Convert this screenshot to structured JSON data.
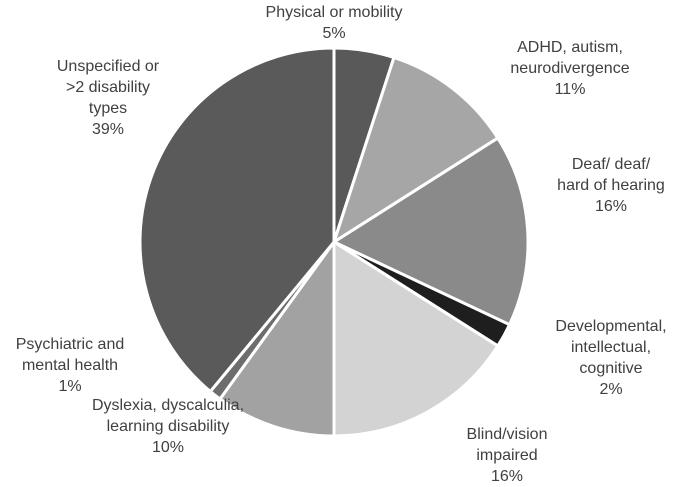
{
  "chart_data": {
    "type": "pie",
    "title": "",
    "slices": [
      {
        "name": "Physical or mobility",
        "lines": [
          "Physical or mobility"
        ],
        "value": 5,
        "label": "5%",
        "color": "#595959"
      },
      {
        "name": "ADHD, autism, neurodivergence",
        "lines": [
          "ADHD, autism,",
          "neurodivergence"
        ],
        "value": 11,
        "label": "11%",
        "color": "#a6a6a6"
      },
      {
        "name": "Deaf/ deaf/ hard of hearing",
        "lines": [
          "Deaf/ deaf/",
          "hard of hearing"
        ],
        "value": 16,
        "label": "16%",
        "color": "#8a8a8a"
      },
      {
        "name": "Developmental, intellectual, cognitive",
        "lines": [
          "Developmental,",
          "intellectual,",
          "cognitive"
        ],
        "value": 2,
        "label": "2%",
        "color": "#1e1e1e"
      },
      {
        "name": "Blind/vision impaired",
        "lines": [
          "Blind/vision",
          "impaired"
        ],
        "value": 16,
        "label": "16%",
        "color": "#d3d3d3"
      },
      {
        "name": "Dyslexia, dyscalculia, learning disability",
        "lines": [
          "Dyslexia, dyscalculia,",
          "learning disability"
        ],
        "value": 10,
        "label": "10%",
        "color": "#a2a2a2"
      },
      {
        "name": "Psychiatric and mental health",
        "lines": [
          "Psychiatric and",
          "mental health"
        ],
        "value": 1,
        "label": "1%",
        "color": "#6d6d6d"
      },
      {
        "name": "Unspecified or >2 disability types",
        "lines": [
          "Unspecified or",
          ">2 disability",
          "types"
        ],
        "value": 39,
        "label": "39%",
        "color": "#5a5a5a"
      }
    ]
  }
}
